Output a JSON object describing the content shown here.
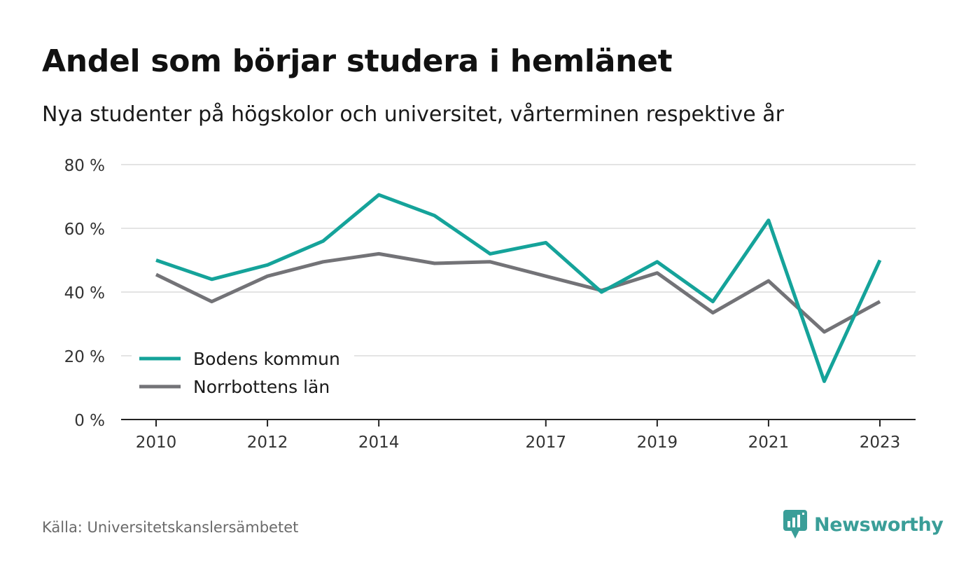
{
  "title": "Andel som börjar studera i hemlänet",
  "subtitle": "Nya studenter på högskolor och universitet, vårterminen respektive år",
  "source": "Källa: Universitetskanslersämbetet",
  "brand": {
    "name": "Newsworthy",
    "icon": "newsworthy-logo-icon",
    "color": "#3a9e98"
  },
  "chart_data": {
    "type": "line",
    "x": [
      2010,
      2011,
      2012,
      2013,
      2014,
      2015,
      2016,
      2017,
      2018,
      2019,
      2020,
      2021,
      2022,
      2023
    ],
    "x_tick_labels": [
      "2010",
      "2012",
      "2014",
      "2017",
      "2019",
      "2021",
      "2023"
    ],
    "y_ticks": [
      0,
      20,
      40,
      60,
      80
    ],
    "y_tick_labels": [
      "0 %",
      "20 %",
      "40 %",
      "60 %",
      "80 %"
    ],
    "ylim": [
      0,
      80
    ],
    "grid": true,
    "legend_position": "bottom-left",
    "series": [
      {
        "name": "Bodens kommun",
        "color": "#15a39a",
        "values": [
          50,
          44,
          48.5,
          56,
          70.5,
          64,
          52,
          55.5,
          40,
          49.5,
          37,
          62.5,
          12,
          50
        ]
      },
      {
        "name": "Norrbottens län",
        "color": "#737377",
        "values": [
          45.5,
          37,
          45,
          49.5,
          52,
          49,
          49.5,
          45,
          40.5,
          46,
          33.5,
          43.5,
          27.5,
          37
        ]
      }
    ]
  }
}
